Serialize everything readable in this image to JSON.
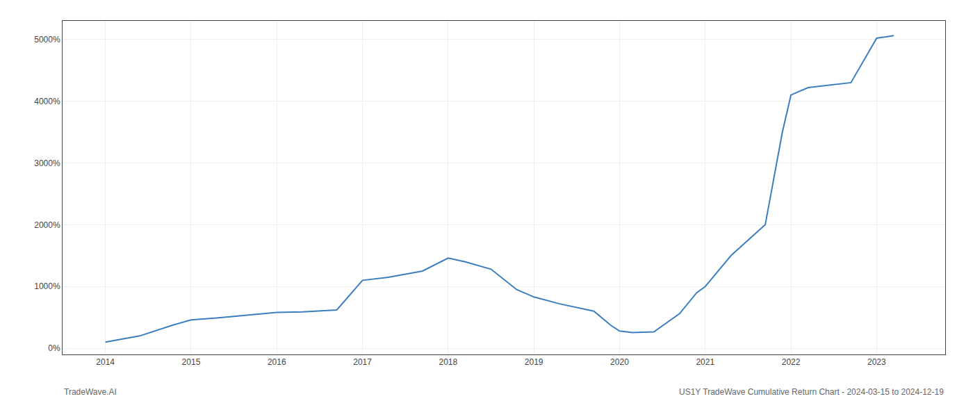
{
  "chart_data": {
    "type": "line",
    "x": [
      2014.0,
      2014.4,
      2014.8,
      2015.0,
      2015.3,
      2015.7,
      2016.0,
      2016.3,
      2016.7,
      2017.0,
      2017.3,
      2017.7,
      2018.0,
      2018.2,
      2018.5,
      2018.8,
      2019.0,
      2019.3,
      2019.7,
      2019.9,
      2020.0,
      2020.15,
      2020.4,
      2020.7,
      2020.9,
      2021.0,
      2021.3,
      2021.7,
      2021.9,
      2022.0,
      2022.2,
      2022.7,
      2023.0,
      2023.2
    ],
    "values": [
      100,
      200,
      380,
      460,
      490,
      540,
      580,
      590,
      620,
      1100,
      1150,
      1250,
      1460,
      1400,
      1280,
      950,
      830,
      720,
      600,
      370,
      280,
      255,
      265,
      560,
      900,
      1000,
      1500,
      2000,
      3500,
      4100,
      4220,
      4300,
      5020,
      5060
    ],
    "color": "#3a7ebf",
    "xlim": [
      2013.5,
      2023.8
    ],
    "ylim": [
      -100,
      5300
    ],
    "xticks": [
      2014,
      2015,
      2016,
      2017,
      2018,
      2019,
      2020,
      2021,
      2022,
      2023
    ],
    "yticks": [
      {
        "value": 0,
        "label": "0%"
      },
      {
        "value": 1000,
        "label": "1000%"
      },
      {
        "value": 2000,
        "label": "2000%"
      },
      {
        "value": 3000,
        "label": "3000%"
      },
      {
        "value": 4000,
        "label": "4000%"
      },
      {
        "value": 5000,
        "label": "5000%"
      }
    ],
    "grid": true,
    "annotations": [
      "TradeWave.AI",
      "US1Y TradeWave Cumulative Return Chart - 2024-03-15 to 2024-12-19"
    ]
  }
}
